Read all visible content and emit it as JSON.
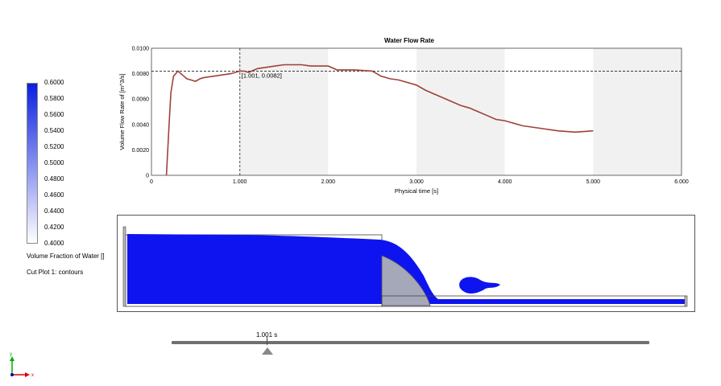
{
  "legend": {
    "ticks": [
      "0.6000",
      "0.5800",
      "0.5600",
      "0.5400",
      "0.5200",
      "0.5000",
      "0.4800",
      "0.4600",
      "0.4400",
      "0.4200",
      "0.4000"
    ],
    "caption1": "Volume Fraction of Water []",
    "caption2": "Cut Plot 1: contours",
    "color_top": "#0a1fe0",
    "color_bottom": "#ffffff"
  },
  "chart": {
    "title": "Water Flow Rate",
    "ylabel": "Volume Flow Rate of  [m^3/s]",
    "xlabel": "Physical time [s]",
    "cursor_label": "[1.001, 0.0082]",
    "line_color": "#a0403a"
  },
  "chart_data": {
    "type": "line",
    "title": "Water Flow Rate",
    "xlabel": "Physical time [s]",
    "ylabel": "Volume Flow Rate of  [m^3/s]",
    "xlim": [
      0,
      6
    ],
    "ylim": [
      0,
      0.01
    ],
    "xticks": [
      "0",
      "1.000",
      "2.000",
      "3.000",
      "4.000",
      "5.000",
      "6.000"
    ],
    "yticks": [
      "0",
      "0.0020",
      "0.0040",
      "0.0060",
      "0.0080",
      "0.0100"
    ],
    "grid": false,
    "cursor": {
      "x": 1.001,
      "y": 0.0082
    },
    "series": [
      {
        "x": [
          0.17,
          0.2,
          0.22,
          0.25,
          0.3,
          0.35,
          0.4,
          0.5,
          0.55,
          0.6,
          0.7,
          0.8,
          0.9,
          1.0,
          1.05,
          1.1,
          1.2,
          1.3,
          1.4,
          1.5,
          1.6,
          1.7,
          1.8,
          1.9,
          2.0,
          2.1,
          2.3,
          2.5,
          2.6,
          2.7,
          2.8,
          3.0,
          3.1,
          3.2,
          3.3,
          3.4,
          3.5,
          3.6,
          3.7,
          3.8,
          3.9,
          4.0,
          4.2,
          4.4,
          4.6,
          4.8,
          5.0
        ],
        "y": [
          0,
          0.004,
          0.0065,
          0.0078,
          0.0082,
          0.0079,
          0.0076,
          0.0074,
          0.0076,
          0.0077,
          0.0078,
          0.0079,
          0.008,
          0.0082,
          0.0082,
          0.0081,
          0.0084,
          0.0085,
          0.0086,
          0.0087,
          0.0087,
          0.0087,
          0.0086,
          0.0086,
          0.0086,
          0.0083,
          0.0083,
          0.0082,
          0.0078,
          0.0076,
          0.0075,
          0.0071,
          0.0067,
          0.0064,
          0.0061,
          0.0058,
          0.0055,
          0.0053,
          0.005,
          0.0047,
          0.0044,
          0.0043,
          0.0039,
          0.0037,
          0.0035,
          0.0034,
          0.0035
        ]
      }
    ]
  },
  "sim": {
    "water_color": "#0e14f0",
    "obstacle_color": "#a4a8b8"
  },
  "timeline": {
    "label": "1.001 s"
  },
  "axes_triad": {
    "y_label": "y",
    "x_label": "x"
  }
}
